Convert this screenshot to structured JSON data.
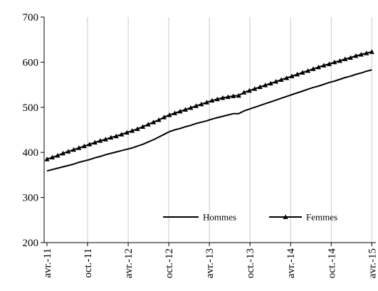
{
  "chart_data": {
    "type": "line",
    "title": "",
    "xlabel": "",
    "ylabel": "",
    "ylim": [
      200,
      700
    ],
    "yticks": [
      200,
      300,
      400,
      500,
      600,
      700
    ],
    "ytick_labels": [
      "200",
      "300",
      "400",
      "500",
      "600",
      "700"
    ],
    "xticks": [
      {
        "label": "avr.-11",
        "month_index": 0
      },
      {
        "label": "oct.-11",
        "month_index": 6
      },
      {
        "label": "avr.-12",
        "month_index": 12
      },
      {
        "label": "oct.-12",
        "month_index": 18
      },
      {
        "label": "avr.-13",
        "month_index": 24
      },
      {
        "label": "oct.-13",
        "month_index": 30
      },
      {
        "label": "avr.-14",
        "month_index": 36
      },
      {
        "label": "oct.-14",
        "month_index": 42
      },
      {
        "label": "avr.-15",
        "month_index": 48
      }
    ],
    "grid": {
      "vertical": true,
      "horizontal": false
    },
    "legend_position": "bottom-right",
    "series": [
      {
        "name": "Hommes",
        "marker": "none",
        "color": "#000000",
        "values": [
          359,
          362,
          365,
          368,
          371,
          374,
          378,
          381,
          384,
          388,
          391,
          395,
          398,
          401,
          404,
          407,
          410,
          414,
          418,
          423,
          428,
          434,
          440,
          446,
          450,
          453,
          457,
          460,
          464,
          467,
          470,
          474,
          477,
          480,
          483,
          486,
          486,
          492,
          496,
          500,
          504,
          508,
          512,
          516,
          520,
          524,
          528,
          532,
          536,
          540,
          544,
          547,
          551,
          555,
          558,
          562,
          566,
          569,
          573,
          576,
          580,
          583
        ]
      },
      {
        "name": "Femmes",
        "marker": "triangle",
        "color": "#000000",
        "values": [
          385,
          389,
          393,
          398,
          402,
          406,
          410,
          414,
          418,
          422,
          426,
          429,
          433,
          436,
          440,
          444,
          448,
          452,
          457,
          462,
          467,
          472,
          478,
          483,
          487,
          491,
          495,
          499,
          503,
          507,
          511,
          515,
          518,
          521,
          523,
          525,
          526,
          533,
          537,
          541,
          545,
          549,
          553,
          557,
          561,
          565,
          569,
          573,
          577,
          581,
          585,
          589,
          593,
          596,
          600,
          603,
          607,
          610,
          614,
          617,
          620,
          623
        ]
      }
    ]
  }
}
